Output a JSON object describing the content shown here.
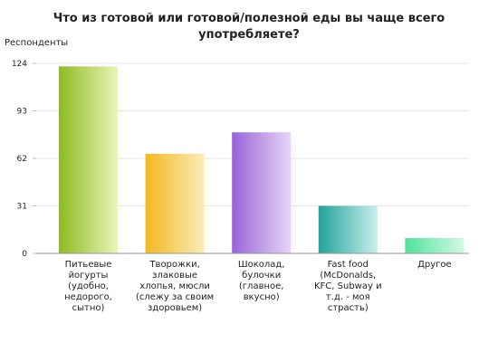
{
  "chart_data": {
    "type": "bar",
    "title_lines": [
      "Что из готовой или готовой/полезной еды вы чаще всего",
      "употребляете?"
    ],
    "ylabel": "Респонденты",
    "xlabel": "",
    "ylim": [
      0,
      124
    ],
    "y_ticks": [
      0,
      31,
      62,
      93,
      124
    ],
    "grid": true,
    "categories": [
      [
        "Питьевые",
        "йогурты",
        "(удобно,",
        "недорого,",
        "сытно)"
      ],
      [
        "Творожки,",
        "злаковые",
        "хлопья, мюсли",
        "(слежу за своим",
        "здоровьем)"
      ],
      [
        "Шоколад,",
        "булочки",
        "(главное,",
        "вкусно)"
      ],
      [
        "Fast food",
        "(McDonalds,",
        "KFC, Subway и",
        "т.д. - моя",
        "страсть)"
      ],
      [
        "Другое"
      ]
    ],
    "values": [
      122,
      65,
      79,
      31,
      10
    ],
    "colors": [
      [
        "#8dbb22",
        "#e9f5b8"
      ],
      [
        "#f2b81f",
        "#fbedb9"
      ],
      [
        "#9a63d8",
        "#e6d5f7"
      ],
      [
        "#21a39a",
        "#c8f0ec"
      ],
      [
        "#4ee39a",
        "#d3f9e6"
      ]
    ]
  }
}
